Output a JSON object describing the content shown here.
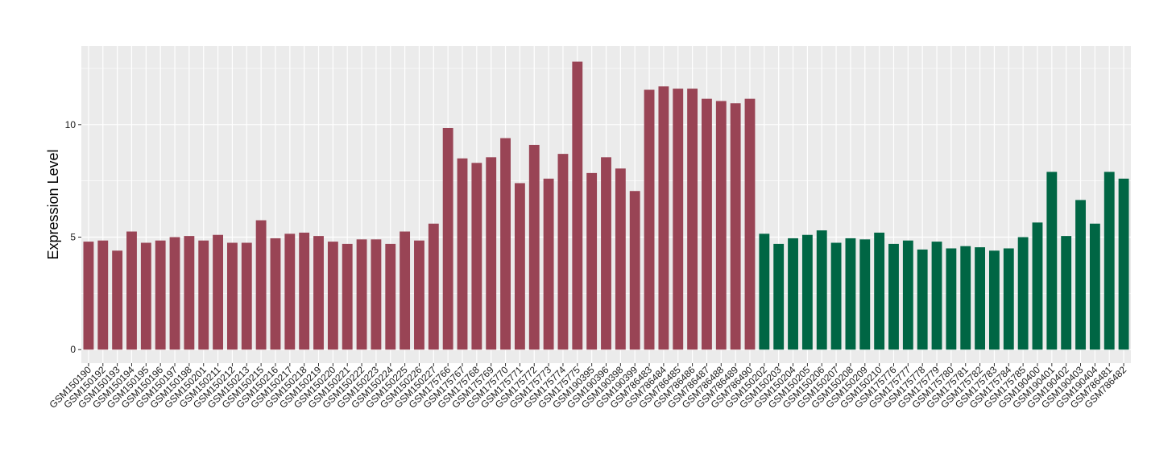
{
  "chart_data": {
    "type": "bar",
    "title": "",
    "xlabel": "",
    "ylabel": "Expression Level",
    "ylim": [
      -0.6,
      13.5
    ],
    "yticks": [
      0,
      5,
      10
    ],
    "grid": true,
    "legend": "none",
    "colors": {
      "group1": "#994455",
      "group2": "#006644",
      "panel": "#EBEBEB",
      "grid": "#FFFFFF"
    },
    "categories": [
      "GSM150190",
      "GSM150192",
      "GSM150193",
      "GSM150194",
      "GSM150195",
      "GSM150196",
      "GSM150197",
      "GSM150198",
      "GSM150201",
      "GSM150211",
      "GSM150212",
      "GSM150213",
      "GSM150215",
      "GSM150216",
      "GSM150217",
      "GSM150218",
      "GSM150219",
      "GSM150220",
      "GSM150221",
      "GSM150222",
      "GSM150223",
      "GSM150224",
      "GSM150225",
      "GSM150226",
      "GSM150227",
      "GSM175766",
      "GSM175767",
      "GSM175768",
      "GSM175769",
      "GSM175770",
      "GSM175771",
      "GSM175772",
      "GSM175773",
      "GSM175774",
      "GSM175775",
      "GSM190395",
      "GSM190396",
      "GSM190398",
      "GSM190399",
      "GSM786483",
      "GSM786484",
      "GSM786485",
      "GSM786486",
      "GSM786487",
      "GSM786488",
      "GSM786489",
      "GSM786490",
      "GSM150202",
      "GSM150203",
      "GSM150204",
      "GSM150205",
      "GSM150206",
      "GSM150207",
      "GSM150208",
      "GSM150209",
      "GSM150210",
      "GSM175776",
      "GSM175777",
      "GSM175778",
      "GSM175779",
      "GSM175780",
      "GSM175781",
      "GSM175782",
      "GSM175783",
      "GSM175784",
      "GSM175785",
      "GSM190400",
      "GSM190401",
      "GSM190402",
      "GSM190403",
      "GSM190404",
      "GSM786481",
      "GSM786482"
    ],
    "values": [
      4.8,
      4.85,
      4.4,
      5.25,
      4.75,
      4.85,
      5.0,
      5.05,
      4.85,
      5.1,
      4.75,
      4.75,
      5.75,
      4.95,
      5.15,
      5.2,
      5.05,
      4.8,
      4.7,
      4.9,
      4.9,
      4.7,
      5.25,
      4.85,
      5.6,
      9.85,
      8.5,
      8.3,
      8.55,
      9.4,
      7.4,
      9.1,
      7.6,
      8.7,
      12.8,
      7.85,
      8.55,
      8.05,
      7.05,
      11.55,
      11.7,
      11.6,
      11.6,
      11.15,
      11.05,
      10.95,
      11.15,
      5.15,
      4.7,
      4.95,
      5.1,
      5.3,
      4.75,
      4.95,
      4.9,
      5.2,
      4.7,
      4.85,
      4.45,
      4.8,
      4.5,
      4.6,
      4.55,
      4.4,
      4.5,
      5.0,
      5.65,
      7.9,
      5.05,
      6.65,
      5.6,
      7.9,
      7.6
    ],
    "groups": [
      1,
      1,
      1,
      1,
      1,
      1,
      1,
      1,
      1,
      1,
      1,
      1,
      1,
      1,
      1,
      1,
      1,
      1,
      1,
      1,
      1,
      1,
      1,
      1,
      1,
      1,
      1,
      1,
      1,
      1,
      1,
      1,
      1,
      1,
      1,
      1,
      1,
      1,
      1,
      1,
      1,
      1,
      1,
      1,
      1,
      1,
      1,
      2,
      2,
      2,
      2,
      2,
      2,
      2,
      2,
      2,
      2,
      2,
      2,
      2,
      2,
      2,
      2,
      2,
      2,
      2,
      2,
      2,
      2,
      2,
      2,
      2,
      2
    ]
  }
}
